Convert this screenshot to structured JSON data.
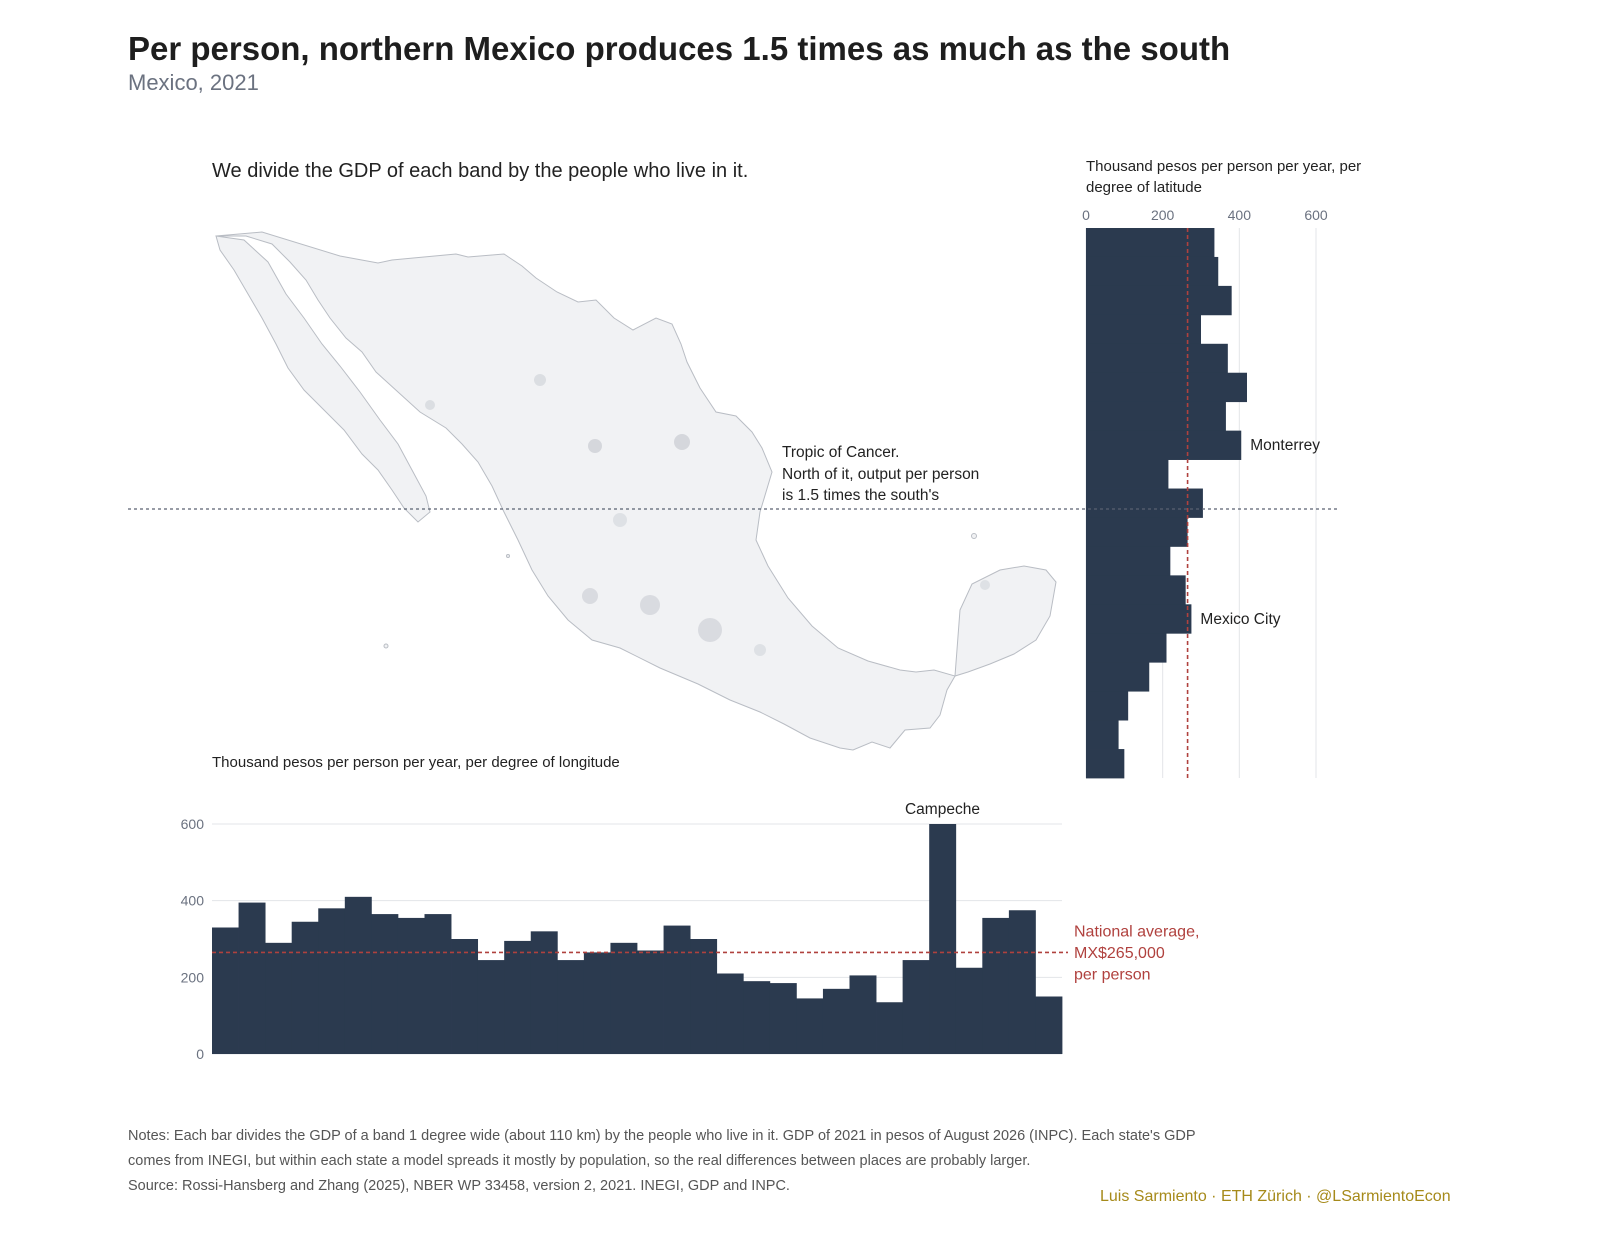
{
  "title": "Per person, northern Mexico produces 1.5 times as much as the south",
  "subtitle": "Mexico, 2021",
  "map_caption": "We divide the GDP of each band by the people who live in it.",
  "tropic_note_lines": [
    "Tropic of Cancer.",
    "North of it, output per person",
    "is 1.5 times the south's"
  ],
  "notes": "Notes: Each bar divides the GDP of a band 1 degree wide (about 110 km) by the people who live in it. GDP of 2021 in pesos of August 2026 (INPC). Each state's GDP comes from INEGI, but within each state a model spreads it mostly by population, so the real differences between places are probably larger.",
  "source": "Source: Rossi-Hansberg and Zhang (2025), NBER WP 33458, version 2, 2021. INEGI, GDP and INPC.",
  "credit": "Luis Sarmiento · ETH Zürich · @LSarmientoEcon",
  "colors": {
    "bar": "#2b3a4f",
    "average": "#b0413e",
    "credit": "#a68a1a",
    "map_fill": "#f1f2f4",
    "map_stroke": "#b9bdc4"
  },
  "icons": {
    "map": "mexico-map-shape"
  },
  "chart_data": [
    {
      "type": "bar",
      "orientation": "horizontal",
      "axis_title": "Thousand pesos per person per year, per degree of latitude",
      "band": "degree of latitude (north at top)",
      "xlim": [
        0,
        600
      ],
      "xticks": [
        0,
        200,
        400,
        600
      ],
      "values": [
        335,
        345,
        380,
        300,
        370,
        420,
        365,
        405,
        215,
        305,
        265,
        220,
        260,
        275,
        210,
        165,
        110,
        85,
        100
      ],
      "national_average": 265,
      "annotations": [
        {
          "text": "Monterrey",
          "band_index": 7
        },
        {
          "text": "Mexico City",
          "band_index": 13
        }
      ],
      "grid": true
    },
    {
      "type": "bar",
      "orientation": "vertical",
      "axis_title": "Thousand pesos per person per year, per degree of longitude",
      "band": "degree of longitude (west at left)",
      "ylim": [
        0,
        600
      ],
      "yticks": [
        0,
        200,
        400,
        600
      ],
      "values": [
        330,
        395,
        290,
        345,
        380,
        410,
        365,
        355,
        365,
        300,
        245,
        295,
        320,
        245,
        265,
        290,
        270,
        335,
        300,
        210,
        190,
        185,
        145,
        170,
        205,
        135,
        245,
        600,
        225,
        355,
        375,
        150
      ],
      "national_average": 265,
      "national_average_label": [
        "National average,",
        "MX$265,000",
        "per person"
      ],
      "annotations": [
        {
          "text": "Campeche",
          "band_index": 27
        }
      ],
      "grid": true
    }
  ]
}
